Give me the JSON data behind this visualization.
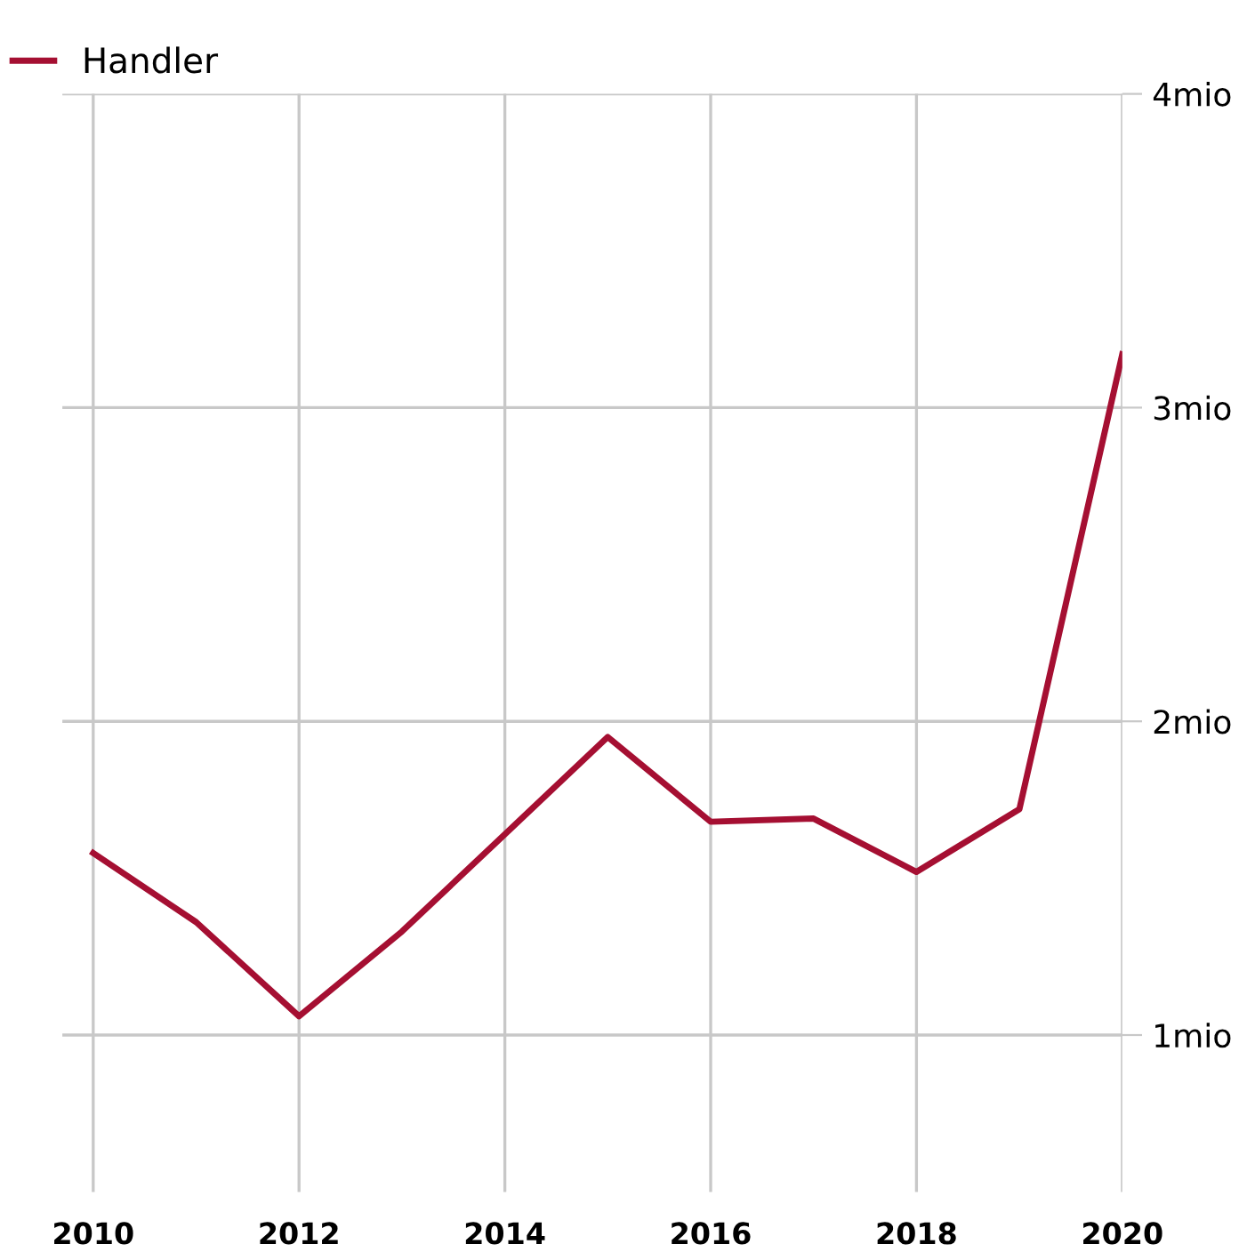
{
  "chart_data": {
    "type": "line",
    "x": [
      2010,
      2011,
      2012,
      2013,
      2014,
      2015,
      2016,
      2017,
      2018,
      2019,
      2020
    ],
    "series": [
      {
        "name": "Handler",
        "color": "#a50f32",
        "values": [
          1.58,
          1.36,
          1.06,
          1.33,
          1.64,
          1.95,
          1.68,
          1.69,
          1.52,
          1.72,
          3.17
        ]
      }
    ],
    "xlim": [
      2009.7,
      2020
    ],
    "xticks": [
      2010,
      2012,
      2014,
      2016,
      2018,
      2020
    ],
    "ylim": [
      0.5,
      4
    ],
    "yticks": [
      {
        "value": 1,
        "label": "1mio"
      },
      {
        "value": 2,
        "label": "2mio"
      },
      {
        "value": 3,
        "label": "3mio"
      },
      {
        "value": 4,
        "label": "4mio"
      }
    ],
    "grid": true,
    "legend": "top left",
    "marker": "none",
    "line_style": "solid"
  }
}
